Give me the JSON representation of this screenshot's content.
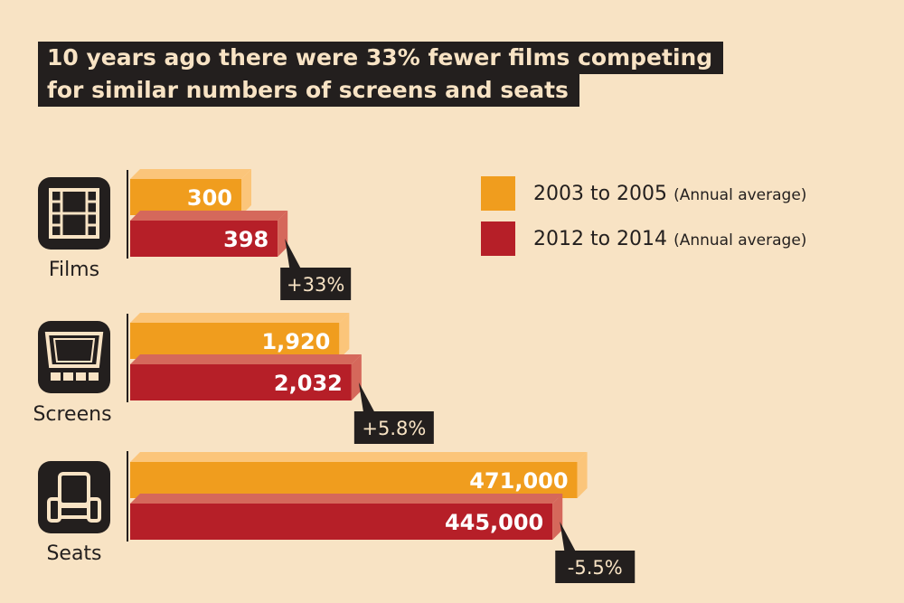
{
  "chart_data": {
    "type": "bar",
    "orientation": "horizontal",
    "title": [
      "10 years ago there were 33% fewer films competing",
      "for similar numbers of screens and seats"
    ],
    "categories": [
      "Films",
      "Screens",
      "Seats"
    ],
    "series": [
      {
        "name": "2003 to 2005",
        "note": "(Annual average)",
        "color": "#f09d1e",
        "values": [
          300,
          1920,
          471000
        ],
        "labels": [
          "300",
          "1,920",
          "471,000"
        ]
      },
      {
        "name": "2012 to 2014",
        "note": "(Annual average)",
        "color": "#b61f28",
        "values": [
          398,
          2032,
          445000
        ],
        "labels": [
          "398",
          "2,032",
          "445,000"
        ]
      }
    ],
    "changes": [
      "+33%",
      "+5.8%",
      "-5.5%"
    ],
    "scale": "each category scaled independently",
    "legend": "top-right",
    "grid": false
  },
  "icons": [
    "film-strip-icon",
    "cinema-screen-icon",
    "cinema-seat-icon"
  ]
}
